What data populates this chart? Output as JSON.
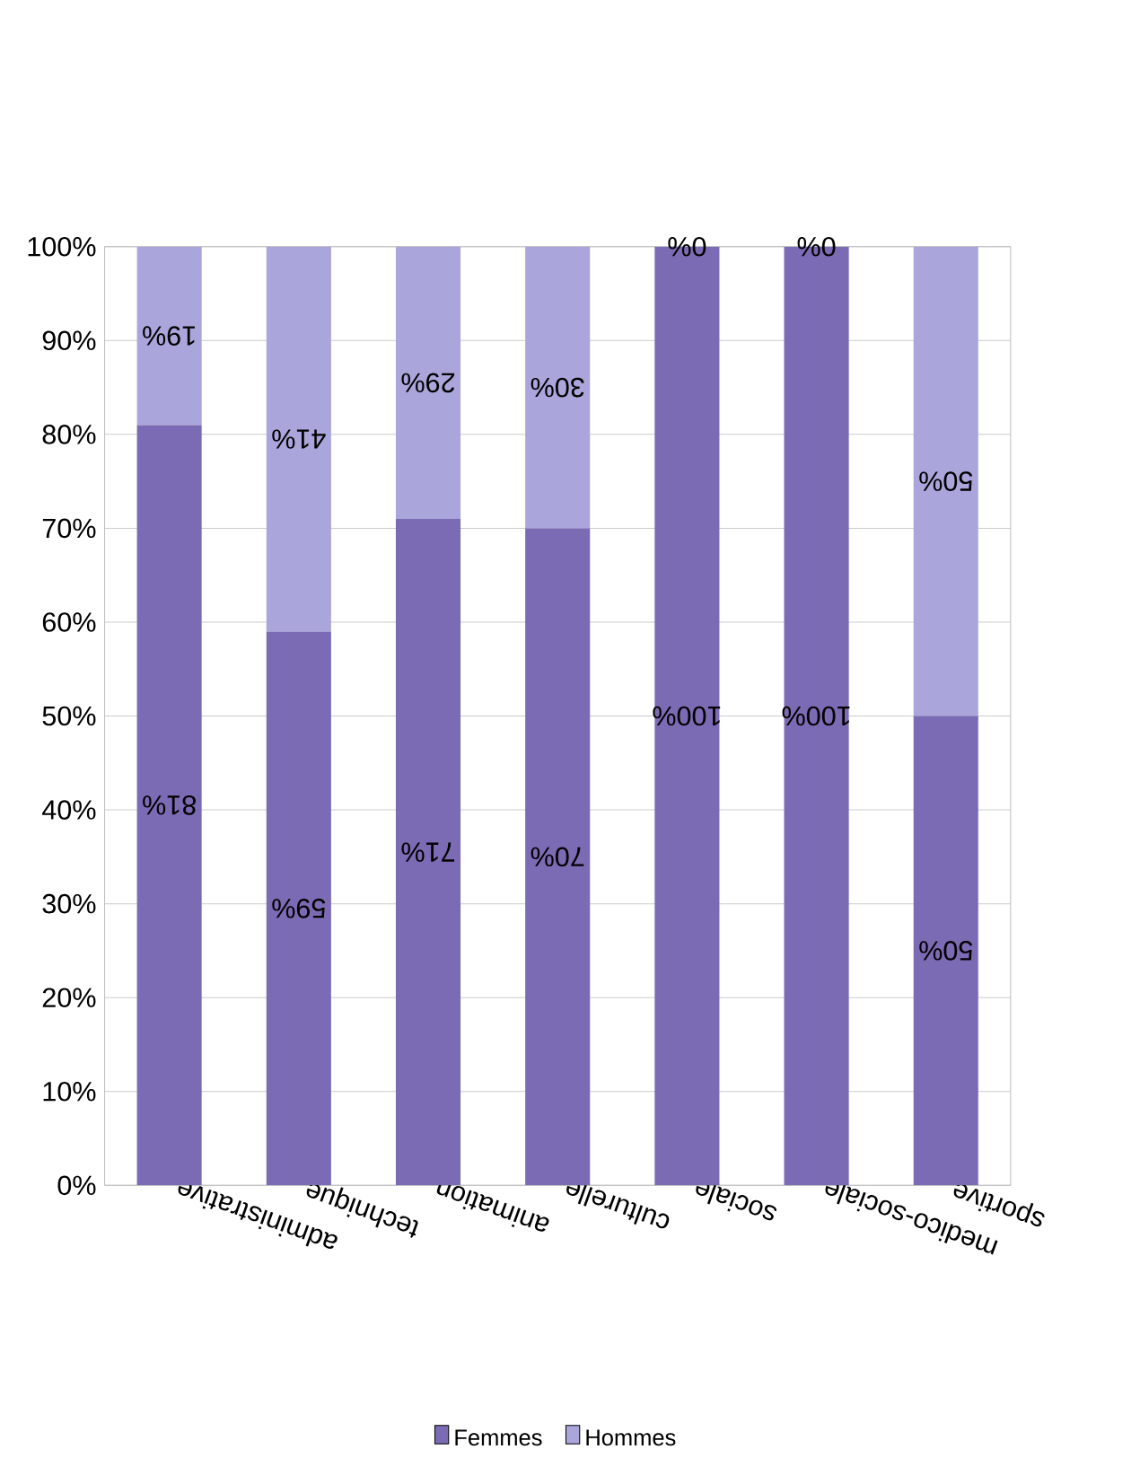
{
  "chart_data": {
    "type": "bar",
    "stacked": true,
    "categories": [
      "administrative",
      "technique",
      "animation",
      "culturelle",
      "sociale",
      "medico-sociale",
      "sportive"
    ],
    "series": [
      {
        "name": "Femmes",
        "color": "#7b6bb4",
        "values": [
          81,
          59,
          71,
          70,
          100,
          100,
          50
        ],
        "value_labels": [
          "81%",
          "59%",
          "71%",
          "70%",
          "100%",
          "100%",
          "50%"
        ]
      },
      {
        "name": "Hommes",
        "color": "#aaa6dc",
        "values": [
          19,
          41,
          29,
          30,
          0,
          0,
          50
        ],
        "value_labels": [
          "19%",
          "41%",
          "29%",
          "30%",
          "0%",
          "0%",
          "50%"
        ]
      }
    ],
    "ylim": [
      0,
      100
    ],
    "yticks": [
      {
        "value": 0,
        "label": "0%"
      },
      {
        "value": 10,
        "label": "10%"
      },
      {
        "value": 20,
        "label": "20%"
      },
      {
        "value": 30,
        "label": "30%"
      },
      {
        "value": 40,
        "label": "40%"
      },
      {
        "value": 50,
        "label": "50%"
      },
      {
        "value": 60,
        "label": "60%"
      },
      {
        "value": 70,
        "label": "70%"
      },
      {
        "value": 80,
        "label": "80%"
      },
      {
        "value": 90,
        "label": "90%"
      },
      {
        "value": 100,
        "label": "100%"
      }
    ],
    "grid": "y",
    "legend": "bottom"
  }
}
